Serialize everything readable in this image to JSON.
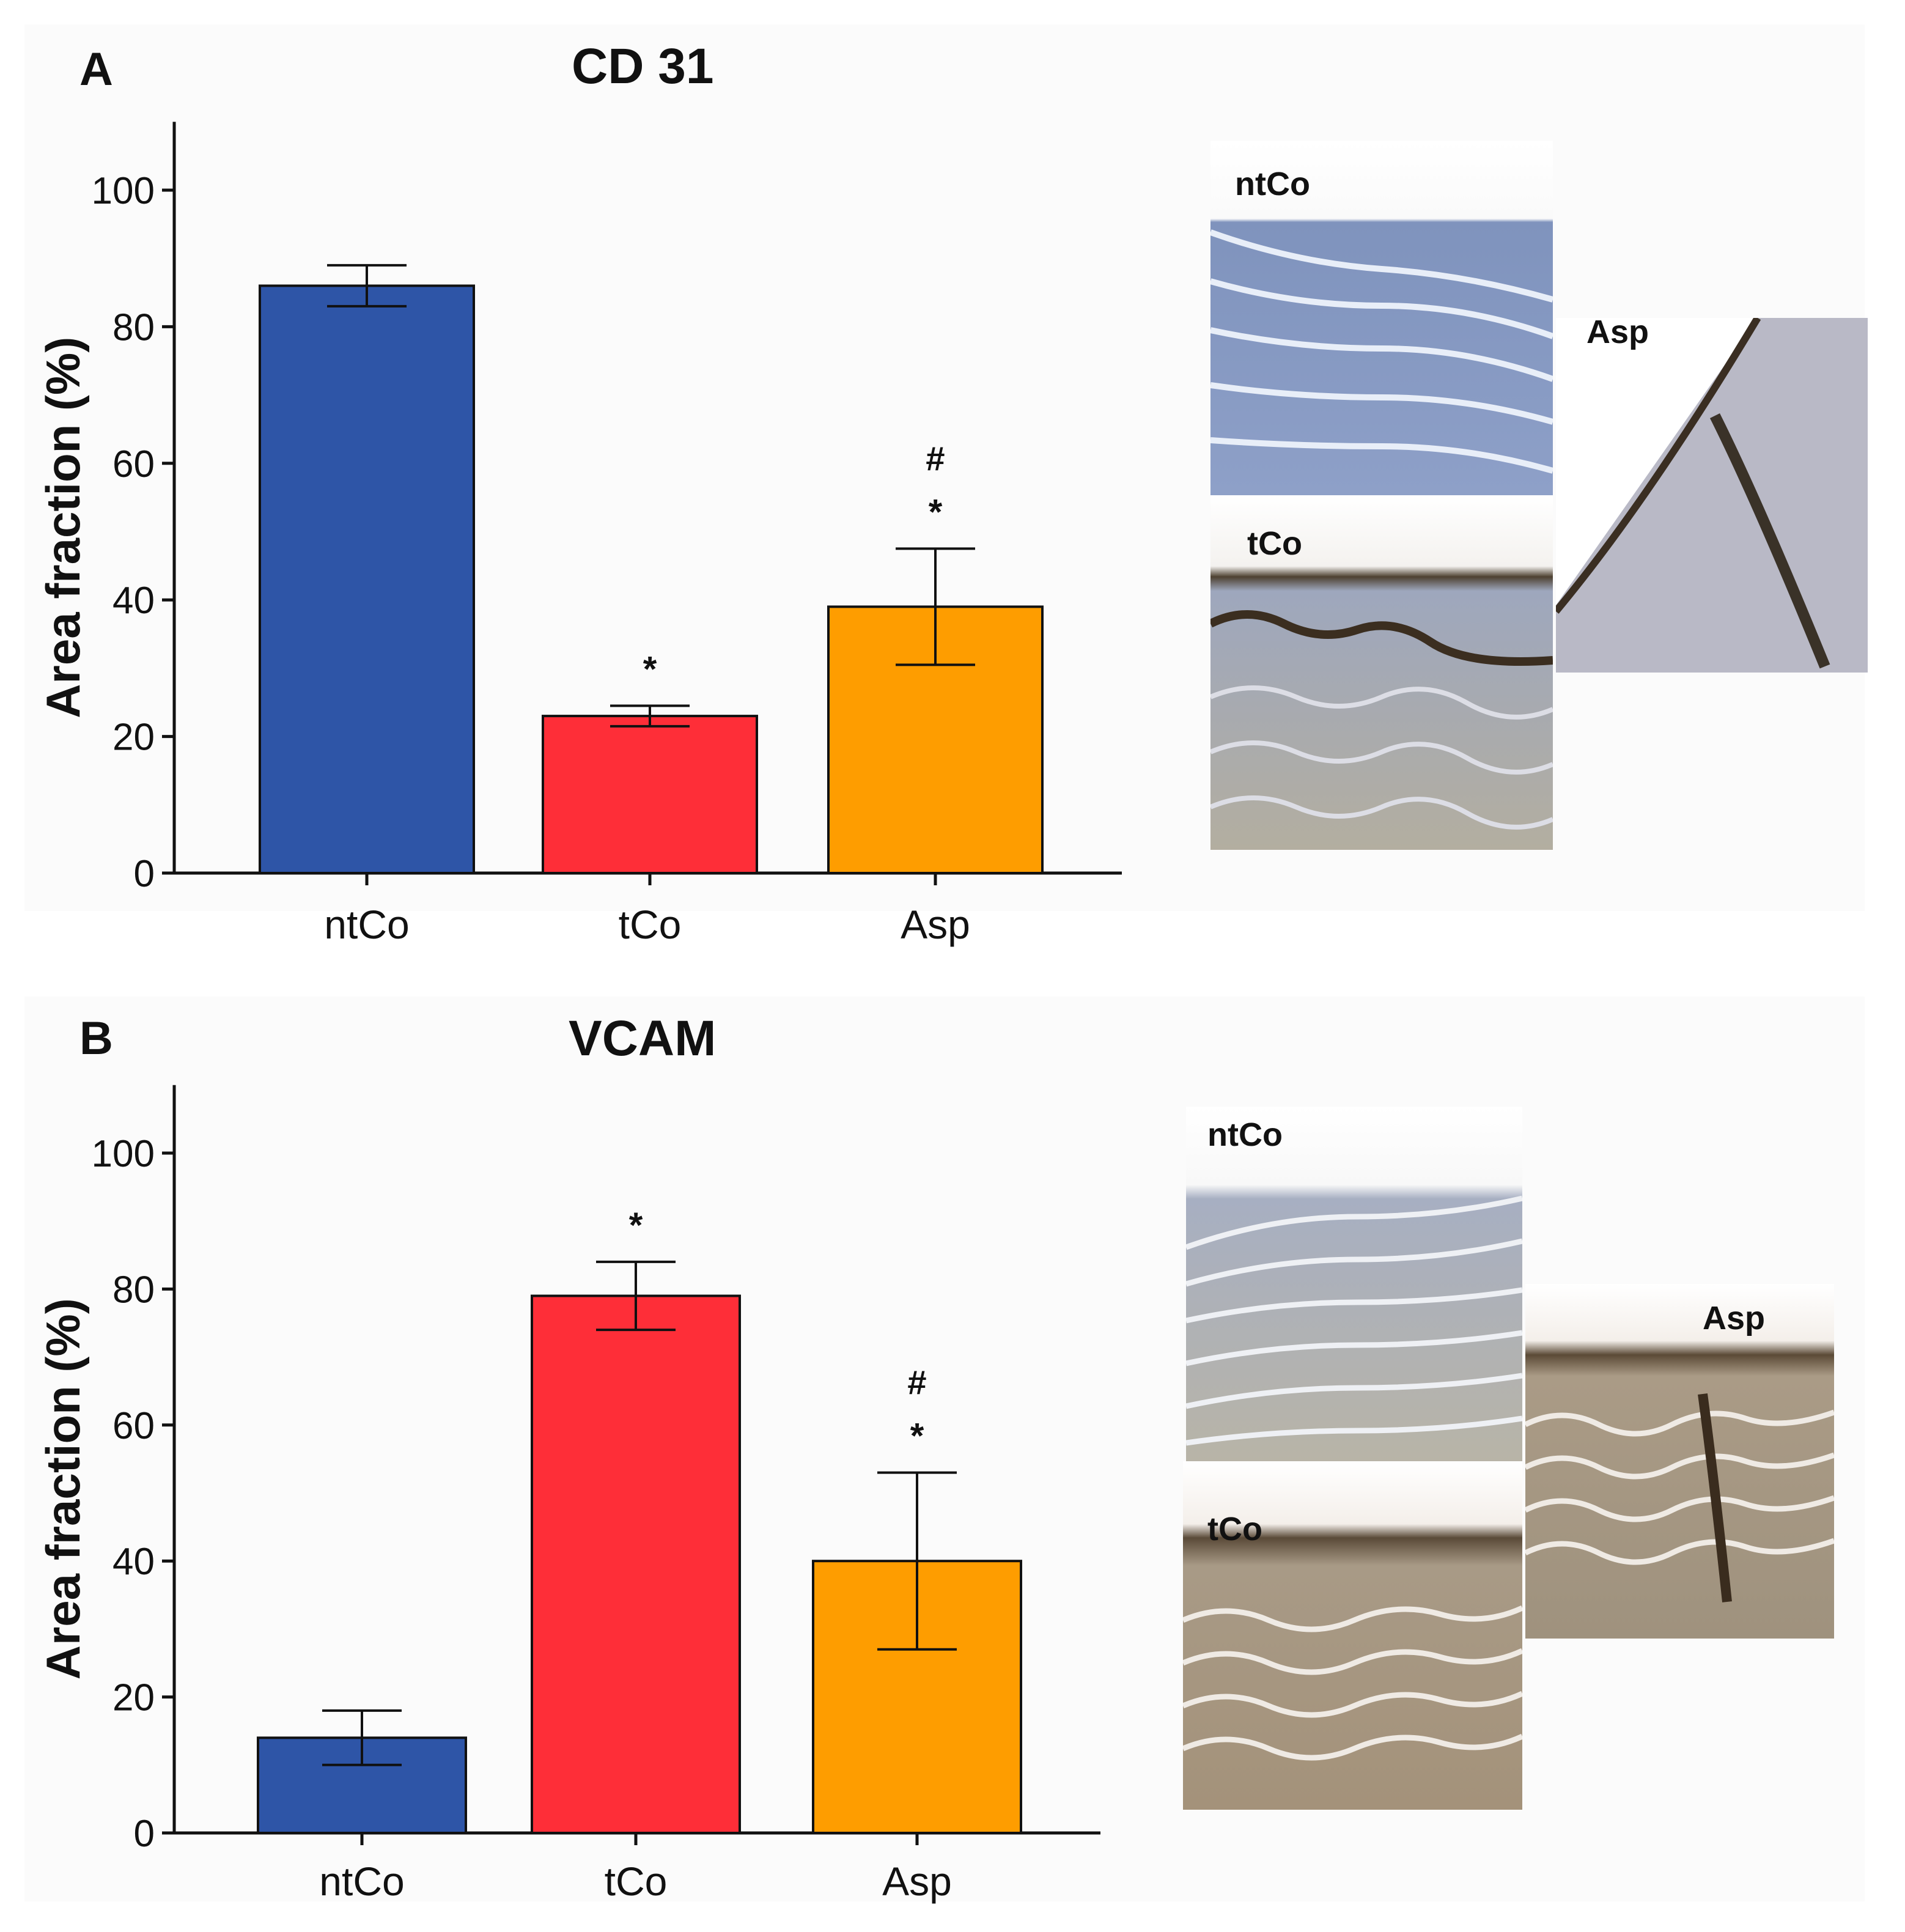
{
  "panels": [
    {
      "letter": "A",
      "title": "CD 31",
      "micrographs": {
        "ntco_label": "ntCo",
        "tco_label": "tCo",
        "asp_label": "Asp"
      }
    },
    {
      "letter": "B",
      "title": "VCAM",
      "micrographs": {
        "ntco_label": "ntCo",
        "tco_label": "tCo",
        "asp_label": "Asp"
      }
    }
  ],
  "colors": {
    "ntCo": "#2e55a7",
    "tCo": "#fe2e38",
    "Asp": "#fe9d00"
  },
  "chart_data": [
    {
      "type": "bar",
      "title": "CD 31",
      "categories": [
        "ntCo",
        "tCo",
        "Asp"
      ],
      "values": [
        86,
        23,
        39
      ],
      "errors": [
        3,
        1.5,
        8.5
      ],
      "annotations": [
        [],
        [
          "*"
        ],
        [
          "*",
          "#"
        ]
      ],
      "ylabel": "Area fraction (%)",
      "ylim": [
        0,
        110
      ],
      "yticks": [
        "0",
        "20",
        "40",
        "60",
        "80",
        "100"
      ],
      "grid": false
    },
    {
      "type": "bar",
      "title": "VCAM",
      "categories": [
        "ntCo",
        "tCo",
        "Asp"
      ],
      "values": [
        14,
        79,
        40
      ],
      "errors": [
        4,
        5,
        13
      ],
      "annotations": [
        [],
        [
          "*"
        ],
        [
          "*",
          "#"
        ]
      ],
      "ylabel": "Area fraction (%)",
      "ylim": [
        0,
        110
      ],
      "yticks": [
        "0",
        "20",
        "40",
        "60",
        "80",
        "100"
      ],
      "grid": false
    }
  ]
}
